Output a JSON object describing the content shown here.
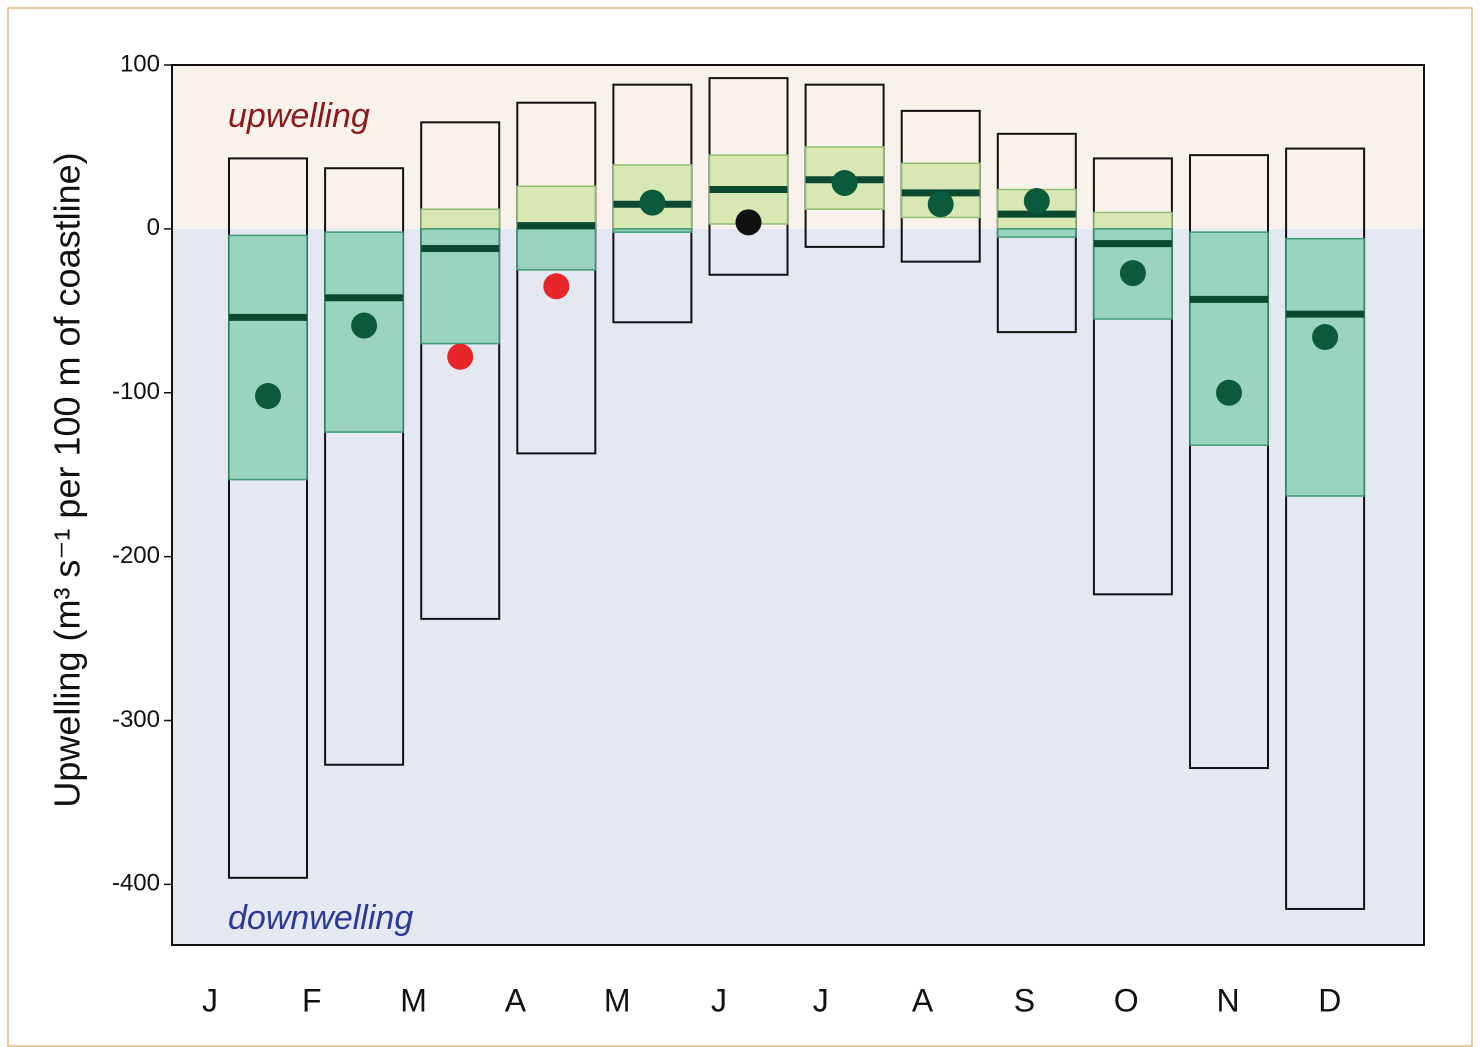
{
  "chart_data": {
    "type": "box",
    "y_label": "Upwelling (m³ s⁻¹ per 100 m of coastline)",
    "annotations": [
      "upwelling",
      "downwelling"
    ],
    "categories": [
      "J",
      "F",
      "M",
      "A",
      "M",
      "J",
      "J",
      "A",
      "S",
      "O",
      "N",
      "D"
    ],
    "max": [
      43,
      37,
      65,
      77,
      88,
      92,
      88,
      72,
      58,
      43,
      45,
      49
    ],
    "q3": [
      -4,
      -2,
      12,
      26,
      39,
      45,
      50,
      40,
      24,
      10,
      -2,
      -6
    ],
    "median": [
      -54,
      -42,
      -12,
      2,
      15,
      24,
      30,
      22,
      9,
      -9,
      -43,
      -52
    ],
    "q1": [
      -153,
      -124,
      -70,
      -25,
      -2,
      3,
      12,
      7,
      -5,
      -55,
      -132,
      -163
    ],
    "min": [
      -396,
      -327,
      -238,
      -137,
      -57,
      -28,
      -11,
      -20,
      -63,
      -223,
      -329,
      -415
    ],
    "dots": [
      -102,
      -59,
      -78,
      -35,
      16,
      4,
      28,
      15,
      17,
      -27,
      -100,
      -66
    ],
    "dot_colors": [
      "#0b5a3c",
      "#0b5a3c",
      "#e8262a",
      "#e8262a",
      "#0b5a3c",
      "#111111",
      "#0b5a3c",
      "#0b5a3c",
      "#0b5a3c",
      "#0b5a3c",
      "#0b5a3c",
      "#0b5a3c"
    ],
    "ylim": [
      -437,
      100
    ],
    "yticks": [
      100,
      0,
      -100,
      -200,
      -300,
      -400
    ],
    "colors": {
      "upper_region": "#f8f2ea",
      "lower_region": "#e3e8f2",
      "iqr_above": "#d9e7b4",
      "iqr_below": "#9ad3bf",
      "median": "#0b4a30",
      "annotation_up": "#8b1a1a",
      "annotation_down": "#2b3a94"
    }
  }
}
